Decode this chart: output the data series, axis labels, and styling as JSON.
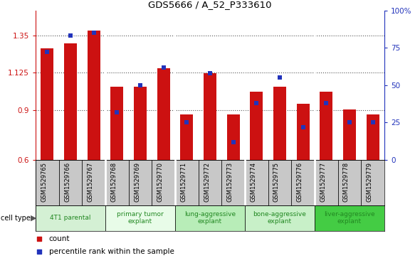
{
  "title": "GDS5666 / A_52_P333610",
  "samples": [
    "GSM1529765",
    "GSM1529766",
    "GSM1529767",
    "GSM1529768",
    "GSM1529769",
    "GSM1529770",
    "GSM1529771",
    "GSM1529772",
    "GSM1529773",
    "GSM1529774",
    "GSM1529775",
    "GSM1529776",
    "GSM1529777",
    "GSM1529778",
    "GSM1529779"
  ],
  "counts": [
    1.27,
    1.3,
    1.38,
    1.04,
    1.04,
    1.15,
    0.875,
    1.12,
    0.875,
    1.01,
    1.04,
    0.94,
    1.01,
    0.905,
    0.875
  ],
  "percentile_ranks": [
    72,
    83,
    85,
    32,
    50,
    62,
    25,
    58,
    12,
    38,
    55,
    22,
    38,
    25,
    25
  ],
  "cell_types": [
    {
      "label": "4T1 parental",
      "start": 0,
      "end": 3,
      "color": "#d4f0d4"
    },
    {
      "label": "primary tumor\nexplant",
      "start": 3,
      "end": 6,
      "color": "#e8fce8"
    },
    {
      "label": "lung-aggressive\nexplant",
      "start": 6,
      "end": 9,
      "color": "#b8edb8"
    },
    {
      "label": "bone-aggressive\nexplant",
      "start": 9,
      "end": 12,
      "color": "#c8f0c8"
    },
    {
      "label": "liver-aggressive\nexplant",
      "start": 12,
      "end": 15,
      "color": "#44cc44"
    }
  ],
  "ylim_left": [
    0.6,
    1.5
  ],
  "ylim_right": [
    0,
    100
  ],
  "yticks_left": [
    0.6,
    0.9,
    1.125,
    1.35
  ],
  "ytick_labels_left": [
    "0.6",
    "0.9",
    "1.125",
    "1.35"
  ],
  "yticks_right": [
    0,
    25,
    50,
    75,
    100
  ],
  "ytick_labels_right": [
    "0",
    "25",
    "50",
    "75",
    "100%"
  ],
  "bar_color": "#cc1111",
  "dot_color": "#2233bb",
  "bar_width": 0.55,
  "dot_size": 22,
  "legend_count_label": "count",
  "legend_percentile_label": "percentile rank within the sample",
  "cell_type_label": "cell type",
  "background_gray": "#c8c8c8",
  "grid_color": "#555555",
  "group_boundaries": [
    3,
    6,
    9,
    12
  ]
}
